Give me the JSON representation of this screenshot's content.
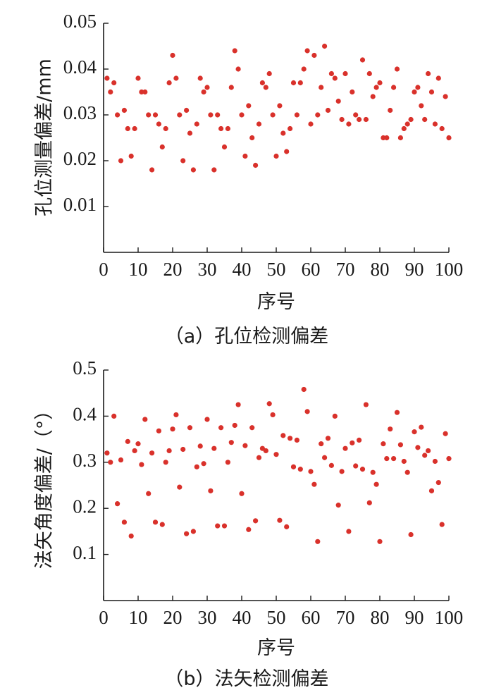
{
  "chart_data": [
    {
      "id": "a",
      "type": "scatter",
      "caption": "（a）孔位检测偏差",
      "xlabel": "序号",
      "ylabel": "孔位测量偏差/mm",
      "xlim": [
        0,
        100
      ],
      "ylim": [
        0,
        0.05
      ],
      "xticks": [
        0,
        10,
        20,
        30,
        40,
        50,
        60,
        70,
        80,
        90,
        100
      ],
      "yticks": [
        0.01,
        0.02,
        0.03,
        0.04,
        0.05
      ],
      "ytick_labels": [
        "0.01",
        "0.02",
        "0.03",
        "0.04",
        "0.05"
      ],
      "color": "#d9312b",
      "x": [
        1,
        2,
        3,
        4,
        5,
        6,
        7,
        8,
        9,
        10,
        11,
        12,
        13,
        14,
        15,
        16,
        17,
        18,
        19,
        20,
        21,
        22,
        23,
        24,
        25,
        26,
        27,
        28,
        29,
        30,
        31,
        32,
        33,
        34,
        35,
        36,
        37,
        38,
        39,
        40,
        41,
        42,
        43,
        44,
        45,
        46,
        47,
        48,
        49,
        50,
        51,
        52,
        53,
        54,
        55,
        56,
        57,
        58,
        59,
        60,
        61,
        62,
        63,
        64,
        65,
        66,
        67,
        68,
        69,
        70,
        71,
        72,
        73,
        74,
        75,
        76,
        77,
        78,
        79,
        80,
        81,
        82,
        83,
        84,
        85,
        86,
        87,
        88,
        89,
        90,
        91,
        92,
        93,
        94,
        95,
        96,
        97,
        98,
        99,
        100
      ],
      "y": [
        0.038,
        0.035,
        0.037,
        0.03,
        0.02,
        0.031,
        0.027,
        0.021,
        0.027,
        0.038,
        0.035,
        0.035,
        0.03,
        0.018,
        0.03,
        0.028,
        0.023,
        0.027,
        0.037,
        0.043,
        0.038,
        0.03,
        0.02,
        0.031,
        0.026,
        0.018,
        0.028,
        0.038,
        0.035,
        0.036,
        0.03,
        0.018,
        0.03,
        0.027,
        0.023,
        0.027,
        0.036,
        0.044,
        0.04,
        0.03,
        0.021,
        0.032,
        0.025,
        0.019,
        0.028,
        0.037,
        0.036,
        0.039,
        0.03,
        0.021,
        0.032,
        0.026,
        0.022,
        0.027,
        0.037,
        0.03,
        0.037,
        0.04,
        0.044,
        0.028,
        0.043,
        0.03,
        0.036,
        0.045,
        0.031,
        0.039,
        0.038,
        0.033,
        0.029,
        0.039,
        0.028,
        0.035,
        0.03,
        0.029,
        0.042,
        0.029,
        0.039,
        0.034,
        0.036,
        0.037,
        0.025,
        0.025,
        0.031,
        0.036,
        0.04,
        0.025,
        0.027,
        0.028,
        0.029,
        0.035,
        0.036,
        0.032,
        0.029,
        0.039,
        0.035,
        0.028,
        0.038,
        0.027,
        0.034,
        0.025
      ]
    },
    {
      "id": "b",
      "type": "scatter",
      "caption": "（b）法矢检测偏差",
      "xlabel": "序号",
      "ylabel": "法矢角度偏差/（°）",
      "xlim": [
        0,
        100
      ],
      "ylim": [
        0,
        0.5
      ],
      "xticks": [
        0,
        10,
        20,
        30,
        40,
        50,
        60,
        70,
        80,
        90,
        100
      ],
      "yticks": [
        0.1,
        0.2,
        0.3,
        0.4,
        0.5
      ],
      "ytick_labels": [
        "0.1",
        "0.2",
        "0.3",
        "0.4",
        "0.5"
      ],
      "color": "#d9312b",
      "x": [
        1,
        2,
        3,
        4,
        5,
        6,
        7,
        8,
        9,
        10,
        11,
        12,
        13,
        14,
        15,
        16,
        17,
        18,
        19,
        20,
        21,
        22,
        23,
        24,
        25,
        26,
        27,
        28,
        29,
        30,
        31,
        32,
        33,
        34,
        35,
        36,
        37,
        38,
        39,
        40,
        41,
        42,
        43,
        44,
        45,
        46,
        47,
        48,
        49,
        50,
        51,
        52,
        53,
        54,
        55,
        56,
        57,
        58,
        59,
        60,
        61,
        62,
        63,
        64,
        65,
        66,
        67,
        68,
        69,
        70,
        71,
        72,
        73,
        74,
        75,
        76,
        77,
        78,
        79,
        80,
        81,
        82,
        83,
        84,
        85,
        86,
        87,
        88,
        89,
        90,
        91,
        92,
        93,
        94,
        95,
        96,
        97,
        98,
        99,
        100
      ],
      "y": [
        0.32,
        0.3,
        0.4,
        0.21,
        0.305,
        0.17,
        0.345,
        0.14,
        0.325,
        0.34,
        0.295,
        0.393,
        0.232,
        0.32,
        0.17,
        0.368,
        0.165,
        0.3,
        0.325,
        0.372,
        0.403,
        0.246,
        0.328,
        0.145,
        0.375,
        0.15,
        0.29,
        0.335,
        0.297,
        0.393,
        0.238,
        0.33,
        0.162,
        0.375,
        0.162,
        0.3,
        0.343,
        0.38,
        0.425,
        0.232,
        0.336,
        0.154,
        0.375,
        0.173,
        0.31,
        0.33,
        0.325,
        0.427,
        0.403,
        0.317,
        0.174,
        0.358,
        0.16,
        0.352,
        0.29,
        0.348,
        0.285,
        0.458,
        0.41,
        0.28,
        0.252,
        0.128,
        0.34,
        0.31,
        0.352,
        0.293,
        0.4,
        0.207,
        0.28,
        0.33,
        0.15,
        0.342,
        0.292,
        0.348,
        0.285,
        0.425,
        0.212,
        0.278,
        0.252,
        0.128,
        0.34,
        0.308,
        0.372,
        0.308,
        0.408,
        0.338,
        0.302,
        0.278,
        0.143,
        0.366,
        0.332,
        0.376,
        0.315,
        0.325,
        0.238,
        0.302,
        0.256,
        0.165,
        0.362,
        0.308
      ]
    }
  ]
}
